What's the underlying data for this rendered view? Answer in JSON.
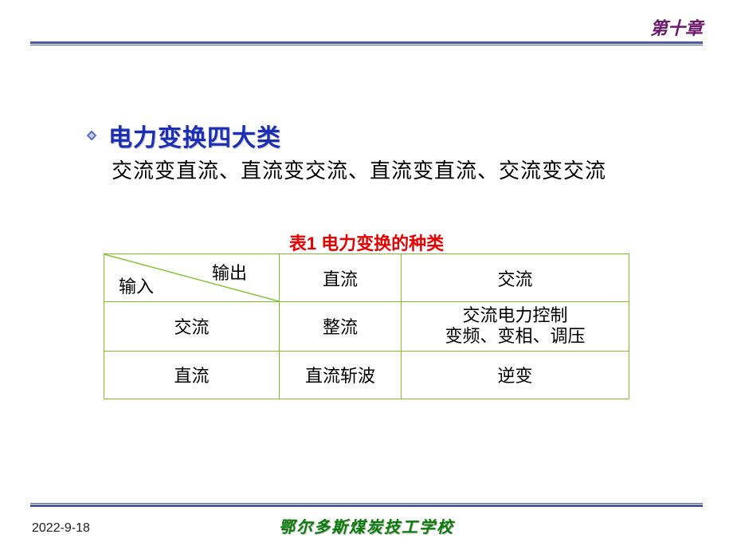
{
  "chapter": "第十章",
  "colors": {
    "rule": "#4a5aa8",
    "table_border": "#7fbf2a",
    "caption": "#e60000",
    "title": "#1a2fb5",
    "chapter": "#6b1a6b",
    "school": "#0a7a0a"
  },
  "title": "电力变换四大类",
  "body": "交流变直流、直流变交流、直流变直流、交流变交流",
  "table": {
    "caption": "表1  电力变换的种类",
    "diag_out": "输出",
    "diag_in": "输入",
    "col_headers": [
      "直流",
      "交流"
    ],
    "rows": [
      {
        "head": "交流",
        "cells": [
          "整流",
          "交流电力控制\n变频、变相、调压"
        ]
      },
      {
        "head": "直流",
        "cells": [
          "直流斩波",
          "逆变"
        ]
      }
    ],
    "font_size": 22,
    "border_width": 1.5
  },
  "footer": {
    "date": "2022-9-18",
    "school": "鄂尔多斯煤炭技工学校"
  },
  "bullet_icon_colors": {
    "outer": "#5a6fc0",
    "inner": "#c8d2f0"
  }
}
